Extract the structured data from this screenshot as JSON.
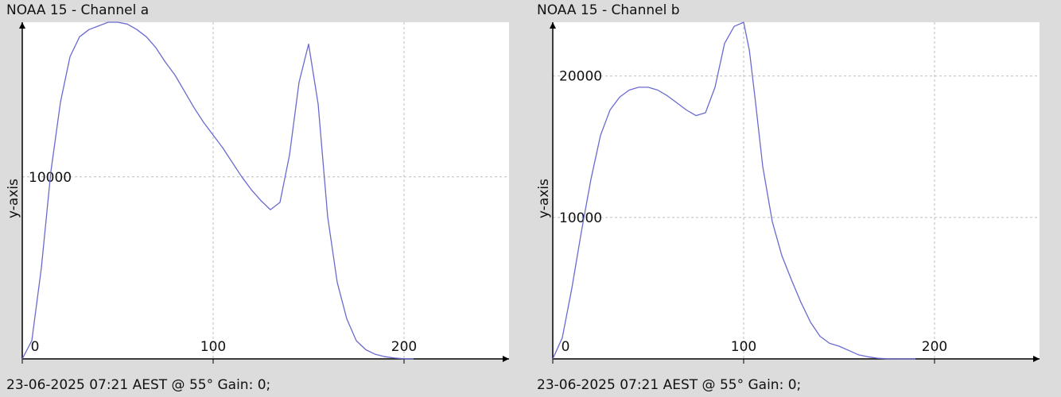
{
  "colors": {
    "background": "#dcdcdc",
    "plot_bg": "#ffffff",
    "line": "#6a6ad0",
    "grid": "#bdbdbd",
    "axis": "#000000"
  },
  "panels": [
    {
      "title": "NOAA 15 - Channel a",
      "footer": "23-06-2025 07:21 AEST @ 55° Gain: 0;"
    },
    {
      "title": "NOAA 15 - Channel b",
      "footer": "23-06-2025 07:21 AEST @ 55° Gain: 0;"
    }
  ],
  "chart_data": [
    {
      "type": "line",
      "title": "NOAA 15 - Channel a",
      "xlabel": "",
      "ylabel": "y-axis",
      "xlim": [
        0,
        255
      ],
      "ylim": [
        0,
        18500
      ],
      "xticks": [
        0,
        100,
        200
      ],
      "yticks": [
        10000
      ],
      "grid": true,
      "series": [
        {
          "x": [
            0,
            5,
            10,
            15,
            20,
            25,
            30,
            35,
            40,
            45,
            50,
            55,
            60,
            65,
            70,
            75,
            80,
            85,
            90,
            95,
            100,
            105,
            110,
            115,
            120,
            125,
            130,
            135,
            140,
            145,
            150,
            155,
            160,
            165,
            170,
            175,
            180,
            185,
            190,
            195,
            200,
            205
          ],
          "y": [
            0,
            1000,
            5000,
            10300,
            14100,
            16600,
            17700,
            18100,
            18300,
            18500,
            18500,
            18400,
            18100,
            17700,
            17100,
            16300,
            15600,
            14700,
            13800,
            13000,
            12300,
            11600,
            10800,
            10000,
            9300,
            8700,
            8200,
            8600,
            11200,
            15200,
            17300,
            14000,
            7800,
            4200,
            2200,
            1000,
            500,
            250,
            120,
            50,
            10,
            0
          ]
        }
      ]
    },
    {
      "type": "line",
      "title": "NOAA 15 - Channel b",
      "xlabel": "",
      "ylabel": "y-axis",
      "xlim": [
        0,
        255
      ],
      "ylim": [
        0,
        23800
      ],
      "xticks": [
        0,
        100,
        200
      ],
      "yticks": [
        10000,
        20000
      ],
      "grid": true,
      "series": [
        {
          "x": [
            0,
            5,
            10,
            15,
            20,
            25,
            30,
            35,
            40,
            45,
            50,
            55,
            60,
            65,
            70,
            75,
            80,
            85,
            90,
            95,
            100,
            103,
            106,
            110,
            115,
            120,
            125,
            130,
            135,
            140,
            145,
            150,
            155,
            160,
            165,
            170,
            175,
            180,
            185,
            190
          ],
          "y": [
            0,
            1500,
            5000,
            9000,
            12700,
            15800,
            17600,
            18500,
            19000,
            19200,
            19200,
            19000,
            18600,
            18100,
            17600,
            17200,
            17400,
            19200,
            22300,
            23500,
            23800,
            21800,
            18400,
            13600,
            9700,
            7300,
            5600,
            4000,
            2600,
            1600,
            1100,
            900,
            600,
            300,
            150,
            50,
            10,
            0,
            0,
            0
          ]
        }
      ]
    }
  ]
}
